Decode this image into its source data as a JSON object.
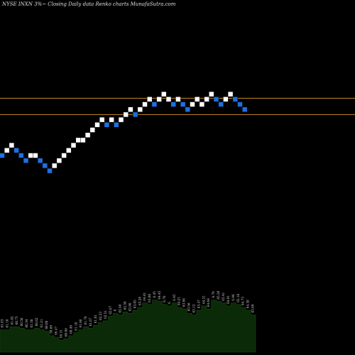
{
  "title": "NYSE INXN  3%~  Closing Daily data  Renko  charts MunafaSutra.com",
  "chart_data": {
    "type": "renko",
    "colors": {
      "background": "#000000",
      "up_brick": "#ffffff",
      "down_brick": "#1e6fe0",
      "level_line": "#c98a1e",
      "volume_fill": "#0b2a07",
      "volume_label": "#d8d8d8"
    },
    "bricks": [
      {
        "v": 0,
        "dir": "down"
      },
      {
        "v": 1,
        "dir": "up"
      },
      {
        "v": 2,
        "dir": "up"
      },
      {
        "v": 1,
        "dir": "down"
      },
      {
        "v": 0,
        "dir": "down"
      },
      {
        "v": -1,
        "dir": "down"
      },
      {
        "v": 0,
        "dir": "up"
      },
      {
        "v": 0,
        "dir": "up"
      },
      {
        "v": -1,
        "dir": "down"
      },
      {
        "v": -2,
        "dir": "down"
      },
      {
        "v": -3,
        "dir": "down"
      },
      {
        "v": -2,
        "dir": "up"
      },
      {
        "v": -1,
        "dir": "up"
      },
      {
        "v": 0,
        "dir": "up"
      },
      {
        "v": 1,
        "dir": "up"
      },
      {
        "v": 2,
        "dir": "up"
      },
      {
        "v": 3,
        "dir": "up"
      },
      {
        "v": 3,
        "dir": "up"
      },
      {
        "v": 4,
        "dir": "up"
      },
      {
        "v": 5,
        "dir": "up"
      },
      {
        "v": 6,
        "dir": "up"
      },
      {
        "v": 7,
        "dir": "up"
      },
      {
        "v": 6,
        "dir": "down"
      },
      {
        "v": 7,
        "dir": "up"
      },
      {
        "v": 6,
        "dir": "down"
      },
      {
        "v": 7,
        "dir": "up"
      },
      {
        "v": 8,
        "dir": "up"
      },
      {
        "v": 9,
        "dir": "up"
      },
      {
        "v": 8,
        "dir": "down"
      },
      {
        "v": 9,
        "dir": "up"
      },
      {
        "v": 10,
        "dir": "up"
      },
      {
        "v": 11,
        "dir": "up"
      },
      {
        "v": 10,
        "dir": "down"
      },
      {
        "v": 11,
        "dir": "up"
      },
      {
        "v": 12,
        "dir": "up"
      },
      {
        "v": 11,
        "dir": "up"
      },
      {
        "v": 10,
        "dir": "down"
      },
      {
        "v": 11,
        "dir": "up"
      },
      {
        "v": 10,
        "dir": "down"
      },
      {
        "v": 9,
        "dir": "down"
      },
      {
        "v": 10,
        "dir": "up"
      },
      {
        "v": 11,
        "dir": "up"
      },
      {
        "v": 10,
        "dir": "up"
      },
      {
        "v": 11,
        "dir": "up"
      },
      {
        "v": 12,
        "dir": "up"
      },
      {
        "v": 11,
        "dir": "down"
      },
      {
        "v": 10,
        "dir": "down"
      },
      {
        "v": 11,
        "dir": "up"
      },
      {
        "v": 12,
        "dir": "up"
      },
      {
        "v": 11,
        "dir": "down"
      },
      {
        "v": 10,
        "dir": "down"
      },
      {
        "v": 9,
        "dir": "down"
      }
    ],
    "levels": [
      11.2,
      8.0
    ],
    "volume": [
      {
        "h": 0.3,
        "label": "61.03"
      },
      {
        "h": 0.3,
        "label": "61.10"
      },
      {
        "h": 0.34,
        "label": "61.02"
      },
      {
        "h": 0.34,
        "label": "60.75"
      },
      {
        "h": 0.32,
        "label": "60.56"
      },
      {
        "h": 0.3,
        "label": "60.34"
      },
      {
        "h": 0.3,
        "label": "61.38"
      },
      {
        "h": 0.32,
        "label": "60.62"
      },
      {
        "h": 0.3,
        "label": "61.21"
      },
      {
        "h": 0.28,
        "label": "60.08"
      },
      {
        "h": 0.22,
        "label": "59.69"
      },
      {
        "h": 0.2,
        "label": "59.47"
      },
      {
        "h": 0.16,
        "label": "59.31"
      },
      {
        "h": 0.18,
        "label": "60.06"
      },
      {
        "h": 0.22,
        "label": "60.49"
      },
      {
        "h": 0.26,
        "label": "61.18"
      },
      {
        "h": 0.3,
        "label": "61.48"
      },
      {
        "h": 0.34,
        "label": "61.78"
      },
      {
        "h": 0.32,
        "label": "61.67"
      },
      {
        "h": 0.36,
        "label": "61.81"
      },
      {
        "h": 0.4,
        "label": "62.23"
      },
      {
        "h": 0.42,
        "label": "62.51"
      },
      {
        "h": 0.48,
        "label": "62.87"
      },
      {
        "h": 0.52,
        "label": "6"
      },
      {
        "h": 0.5,
        "label": "62.48"
      },
      {
        "h": 0.54,
        "label": "62.58"
      },
      {
        "h": 0.52,
        "label": "62.86"
      },
      {
        "h": 0.56,
        "label": "63.05"
      },
      {
        "h": 0.6,
        "label": "63.28"
      },
      {
        "h": 0.66,
        "label": "64.61"
      },
      {
        "h": 0.64,
        "label": "63.86"
      },
      {
        "h": 0.7,
        "label": "6.45"
      },
      {
        "h": 0.68,
        "label": "64.45"
      },
      {
        "h": 0.64,
        "label": "6.76"
      },
      {
        "h": 0.62,
        "label": "6"
      },
      {
        "h": 0.66,
        "label": "6.45"
      },
      {
        "h": 0.6,
        "label": "64.21"
      },
      {
        "h": 0.58,
        "label": "63.98"
      },
      {
        "h": 0.52,
        "label": "63.56"
      },
      {
        "h": 0.5,
        "label": "63.12"
      },
      {
        "h": 0.56,
        "label": "63.47"
      },
      {
        "h": 0.62,
        "label": "64.21"
      },
      {
        "h": 0.58,
        "label": "64.04"
      },
      {
        "h": 0.7,
        "label": "6.76"
      },
      {
        "h": 0.68,
        "label": "65.28"
      },
      {
        "h": 0.66,
        "label": "65.41"
      },
      {
        "h": 0.62,
        "label": "64.91"
      },
      {
        "h": 0.66,
        "label": "6.96"
      },
      {
        "h": 0.64,
        "label": "65.18"
      },
      {
        "h": 0.6,
        "label": "64.73"
      },
      {
        "h": 0.56,
        "label": "64.38"
      },
      {
        "h": 0.5,
        "label": "63.89"
      }
    ]
  }
}
